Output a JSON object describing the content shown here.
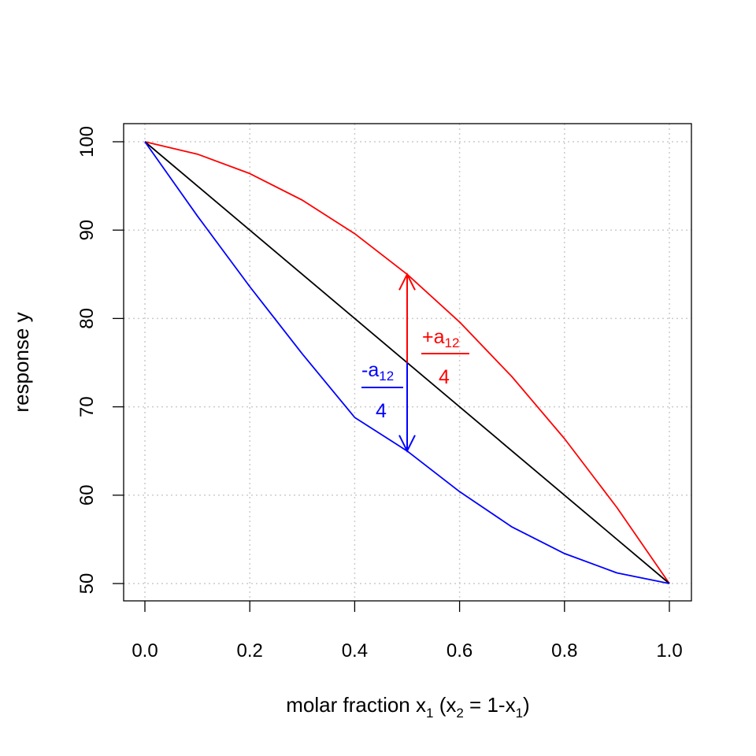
{
  "chart_data": {
    "type": "line",
    "xlabel": {
      "main": "molar fraction x",
      "sub1": "1",
      "paren_open": " (x",
      "sub2": "2",
      "mid": " = 1-x",
      "sub3": "1",
      "close": ")"
    },
    "ylabel": "response y",
    "xlim": [
      0.0,
      1.0
    ],
    "ylim": [
      50,
      100
    ],
    "x_ticks": [
      0.0,
      0.2,
      0.4,
      0.6,
      0.8,
      1.0
    ],
    "x_tick_labels": [
      "0.0",
      "0.2",
      "0.4",
      "0.6",
      "0.8",
      "1.0"
    ],
    "y_ticks": [
      50,
      60,
      70,
      80,
      90,
      100
    ],
    "y_tick_labels": [
      "50",
      "60",
      "70",
      "80",
      "90",
      "100"
    ],
    "grid": true,
    "series": [
      {
        "color": "#ff0000",
        "x": [
          0.0,
          0.1,
          0.2,
          0.3,
          0.4,
          0.5,
          0.6,
          0.7,
          0.8,
          0.9,
          1.0
        ],
        "y": [
          100,
          98.6,
          96.4,
          93.4,
          89.6,
          85.0,
          79.6,
          73.4,
          66.4,
          58.6,
          50.0
        ]
      },
      {
        "color": "#000000",
        "x": [
          0.0,
          1.0
        ],
        "y": [
          100,
          50
        ]
      },
      {
        "color": "#0000ff",
        "x": [
          0.0,
          0.1,
          0.2,
          0.3,
          0.4,
          0.5,
          0.6,
          0.7,
          0.8,
          0.9,
          1.0
        ],
        "y": [
          100,
          91.6,
          83.6,
          76.0,
          68.8,
          65.0,
          60.4,
          56.4,
          53.4,
          51.2,
          50.0
        ]
      }
    ],
    "arrow": {
      "x": 0.5,
      "y_from": 75,
      "y_up": 85,
      "y_down": 65
    },
    "annotations": [
      {
        "num": "+a",
        "sub": "12",
        "den": "4",
        "color": "#ff0000"
      },
      {
        "num": "-a",
        "sub": "12",
        "den": "4",
        "color": "#0000ff"
      }
    ]
  }
}
